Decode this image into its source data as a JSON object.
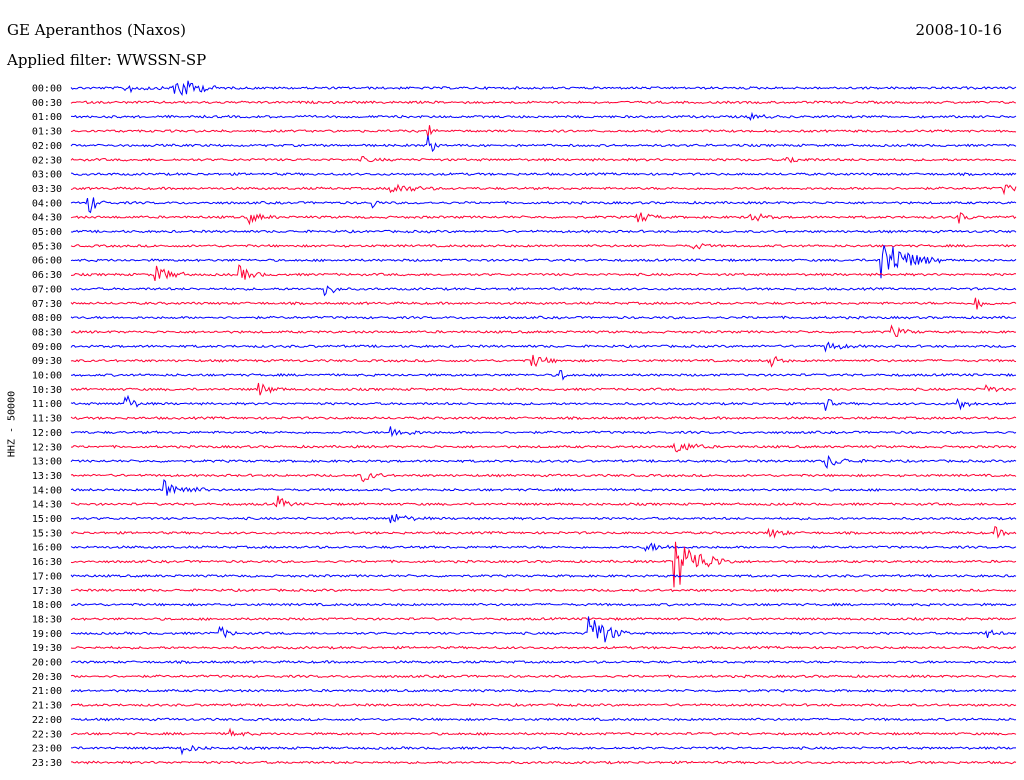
{
  "header": {
    "station": "GE Aperanthos (Naxos)",
    "date": "2008-10-16",
    "filter": "Applied filter: WWSSN-SP"
  },
  "chart_data": {
    "type": "line",
    "title": "GE Aperanthos (Naxos)",
    "ylabel": "HHZ - 50000",
    "xlabel": "",
    "colors": [
      "#0000ff",
      "#ff0033"
    ],
    "rows": [
      {
        "time": "00:00",
        "events": [
          {
            "x": 0.06,
            "amp": 4,
            "len": 0.04
          },
          {
            "x": 0.11,
            "amp": 14,
            "len": 0.05
          }
        ]
      },
      {
        "time": "00:30",
        "events": []
      },
      {
        "time": "01:00",
        "events": [
          {
            "x": 0.72,
            "amp": 3,
            "len": 0.03
          }
        ]
      },
      {
        "time": "01:30",
        "events": [
          {
            "x": 0.38,
            "amp": 4,
            "len": 0.01
          }
        ]
      },
      {
        "time": "02:00",
        "events": [
          {
            "x": 0.38,
            "amp": 10,
            "len": 0.01
          }
        ]
      },
      {
        "time": "02:30",
        "events": [
          {
            "x": 0.31,
            "amp": 2,
            "len": 0.03
          },
          {
            "x": 0.76,
            "amp": 3,
            "len": 0.03
          }
        ]
      },
      {
        "time": "03:00",
        "events": []
      },
      {
        "time": "03:30",
        "events": [
          {
            "x": 0.34,
            "amp": 5,
            "len": 0.05
          },
          {
            "x": 0.99,
            "amp": 4,
            "len": 0.02
          }
        ]
      },
      {
        "time": "04:00",
        "events": [
          {
            "x": 0.02,
            "amp": 10,
            "len": 0.02
          },
          {
            "x": 0.32,
            "amp": 4,
            "len": 0.01
          }
        ]
      },
      {
        "time": "04:30",
        "events": [
          {
            "x": 0.19,
            "amp": 5,
            "len": 0.03
          },
          {
            "x": 0.6,
            "amp": 6,
            "len": 0.03
          },
          {
            "x": 0.72,
            "amp": 5,
            "len": 0.03
          },
          {
            "x": 0.94,
            "amp": 5,
            "len": 0.02
          }
        ]
      },
      {
        "time": "05:00",
        "events": []
      },
      {
        "time": "05:30",
        "events": [
          {
            "x": 0.66,
            "amp": 4,
            "len": 0.02
          }
        ]
      },
      {
        "time": "06:00",
        "events": [
          {
            "x": 0.86,
            "amp": 24,
            "len": 0.06
          }
        ]
      },
      {
        "time": "06:30",
        "events": [
          {
            "x": 0.09,
            "amp": 8,
            "len": 0.04
          },
          {
            "x": 0.18,
            "amp": 7,
            "len": 0.03
          }
        ]
      },
      {
        "time": "07:00",
        "events": [
          {
            "x": 0.27,
            "amp": 8,
            "len": 0.02
          }
        ]
      },
      {
        "time": "07:30",
        "events": [
          {
            "x": 0.96,
            "amp": 6,
            "len": 0.02
          }
        ]
      },
      {
        "time": "08:00",
        "events": []
      },
      {
        "time": "08:30",
        "events": [
          {
            "x": 0.87,
            "amp": 5,
            "len": 0.03
          }
        ]
      },
      {
        "time": "09:00",
        "events": [
          {
            "x": 0.8,
            "amp": 4,
            "len": 0.04
          }
        ]
      },
      {
        "time": "09:30",
        "events": [
          {
            "x": 0.49,
            "amp": 6,
            "len": 0.03
          },
          {
            "x": 0.74,
            "amp": 7,
            "len": 0.02
          }
        ]
      },
      {
        "time": "10:00",
        "events": [
          {
            "x": 0.52,
            "amp": 5,
            "len": 0.01
          }
        ]
      },
      {
        "time": "10:30",
        "events": [
          {
            "x": 0.2,
            "amp": 6,
            "len": 0.03
          },
          {
            "x": 0.97,
            "amp": 4,
            "len": 0.02
          }
        ]
      },
      {
        "time": "11:00",
        "events": [
          {
            "x": 0.06,
            "amp": 8,
            "len": 0.02
          },
          {
            "x": 0.8,
            "amp": 8,
            "len": 0.01
          },
          {
            "x": 0.94,
            "amp": 6,
            "len": 0.02
          }
        ]
      },
      {
        "time": "11:30",
        "events": []
      },
      {
        "time": "12:00",
        "events": [
          {
            "x": 0.34,
            "amp": 5,
            "len": 0.04
          }
        ]
      },
      {
        "time": "12:30",
        "events": [
          {
            "x": 0.64,
            "amp": 7,
            "len": 0.04
          }
        ]
      },
      {
        "time": "13:00",
        "events": [
          {
            "x": 0.8,
            "amp": 6,
            "len": 0.04
          }
        ]
      },
      {
        "time": "13:30",
        "events": [
          {
            "x": 0.31,
            "amp": 5,
            "len": 0.03
          }
        ]
      },
      {
        "time": "14:00",
        "events": [
          {
            "x": 0.1,
            "amp": 9,
            "len": 0.05
          }
        ]
      },
      {
        "time": "14:30",
        "events": [
          {
            "x": 0.22,
            "amp": 7,
            "len": 0.02
          }
        ]
      },
      {
        "time": "15:00",
        "events": [
          {
            "x": 0.34,
            "amp": 5,
            "len": 0.04
          }
        ]
      },
      {
        "time": "15:30",
        "events": [
          {
            "x": 0.74,
            "amp": 5,
            "len": 0.03
          },
          {
            "x": 0.98,
            "amp": 4,
            "len": 0.02
          }
        ]
      },
      {
        "time": "16:00",
        "events": [
          {
            "x": 0.61,
            "amp": 4,
            "len": 0.04
          }
        ]
      },
      {
        "time": "16:30",
        "events": [
          {
            "x": 0.64,
            "amp": 28,
            "len": 0.06
          }
        ]
      },
      {
        "time": "17:00",
        "events": []
      },
      {
        "time": "17:30",
        "events": []
      },
      {
        "time": "18:00",
        "events": []
      },
      {
        "time": "18:30",
        "events": []
      },
      {
        "time": "19:00",
        "events": [
          {
            "x": 0.16,
            "amp": 5,
            "len": 0.02
          },
          {
            "x": 0.55,
            "amp": 24,
            "len": 0.04
          },
          {
            "x": 0.97,
            "amp": 4,
            "len": 0.02
          }
        ]
      },
      {
        "time": "19:30",
        "events": []
      },
      {
        "time": "20:00",
        "events": []
      },
      {
        "time": "20:30",
        "events": []
      },
      {
        "time": "21:00",
        "events": []
      },
      {
        "time": "21:30",
        "events": []
      },
      {
        "time": "22:00",
        "events": []
      },
      {
        "time": "22:30",
        "events": [
          {
            "x": 0.17,
            "amp": 3,
            "len": 0.03
          }
        ]
      },
      {
        "time": "23:00",
        "events": [
          {
            "x": 0.12,
            "amp": 4,
            "len": 0.03
          }
        ]
      },
      {
        "time": "23:30",
        "events": []
      }
    ]
  }
}
